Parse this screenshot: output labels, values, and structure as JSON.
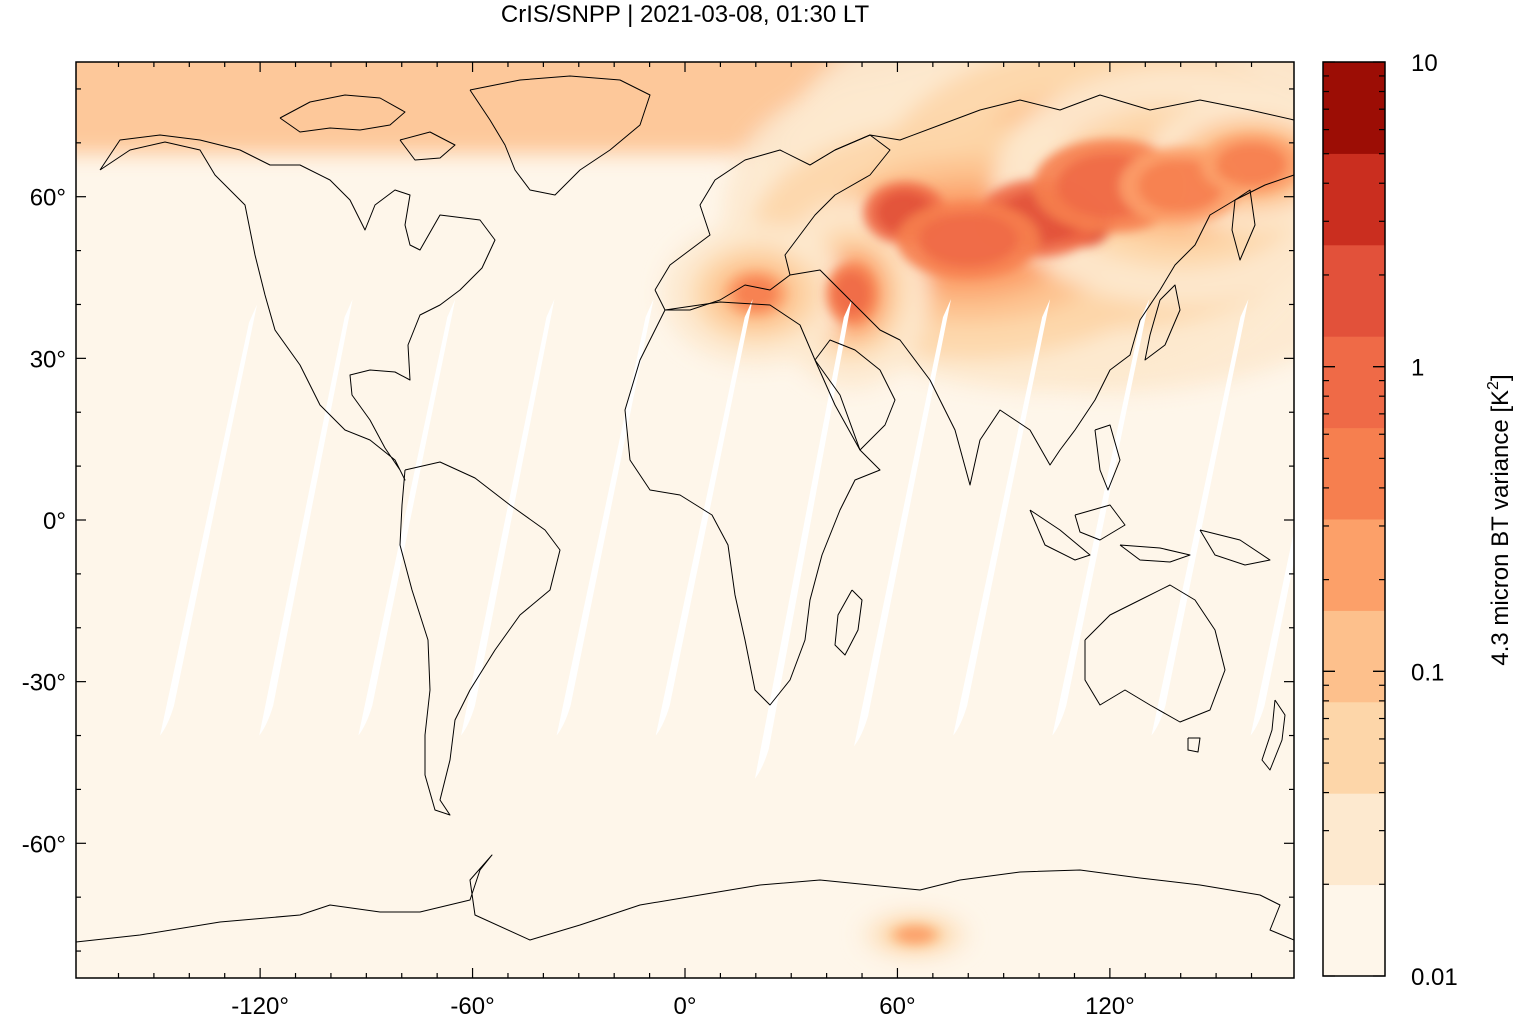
{
  "title": "CrIS/SNPP | 2021-03-08, 01:30 LT",
  "map": {
    "projection": "equirectangular",
    "lon_range": [
      -172,
      172
    ],
    "lat_range": [
      -85,
      85
    ],
    "x_ticks": [
      {
        "value": -120,
        "label": "-120°"
      },
      {
        "value": -60,
        "label": "-60°"
      },
      {
        "value": 0,
        "label": "0°"
      },
      {
        "value": 60,
        "label": "60°"
      },
      {
        "value": 120,
        "label": "120°"
      }
    ],
    "y_ticks": [
      {
        "value": 60,
        "label": "60°"
      },
      {
        "value": 30,
        "label": "30°"
      },
      {
        "value": 0,
        "label": "0°"
      },
      {
        "value": -30,
        "label": "-30°"
      },
      {
        "value": -60,
        "label": "-60°"
      }
    ],
    "background_color": "#fef6ea",
    "coastline_color": "#000000"
  },
  "colorbar": {
    "label": "4.3 micron BT variance [K",
    "label_superscript": "2",
    "label_close": "]",
    "scale": "log",
    "range": [
      0.01,
      10
    ],
    "tick_labels": [
      {
        "value": 10,
        "label": "10"
      },
      {
        "value": 1,
        "label": "1"
      },
      {
        "value": 0.1,
        "label": "0.1"
      },
      {
        "value": 0.01,
        "label": "0.01"
      }
    ],
    "levels": [
      {
        "from": 0.01,
        "to": 0.02,
        "color": "#fef6ea"
      },
      {
        "from": 0.02,
        "to": 0.04,
        "color": "#fde9cf"
      },
      {
        "from": 0.04,
        "to": 0.08,
        "color": "#fdd6a9"
      },
      {
        "from": 0.08,
        "to": 0.16,
        "color": "#fdc08c"
      },
      {
        "from": 0.16,
        "to": 0.32,
        "color": "#fca069"
      },
      {
        "from": 0.32,
        "to": 0.63,
        "color": "#f67f4f"
      },
      {
        "from": 0.63,
        "to": 1.26,
        "color": "#ef6a47"
      },
      {
        "from": 1.26,
        "to": 2.5,
        "color": "#e2513a"
      },
      {
        "from": 2.5,
        "to": 5.0,
        "color": "#ca2e1f"
      },
      {
        "from": 5.0,
        "to": 10.0,
        "color": "#9c0d05"
      }
    ]
  },
  "swath_gaps": [
    {
      "lon_south": -146,
      "lat_south": -40,
      "lon_north": -122,
      "lat_north": 40
    },
    {
      "lon_south": -118,
      "lat_south": -40,
      "lon_north": -95,
      "lat_north": 41
    },
    {
      "lon_south": -90,
      "lat_south": -40,
      "lon_north": -66,
      "lat_north": 41
    },
    {
      "lon_south": -61,
      "lat_south": -40,
      "lon_north": -38,
      "lat_north": 41
    },
    {
      "lon_south": -34,
      "lat_south": -40,
      "lon_north": -10,
      "lat_north": 41
    },
    {
      "lon_south": -6,
      "lat_south": -40,
      "lon_north": 18,
      "lat_north": 41
    },
    {
      "lon_south": 22,
      "lat_south": -48,
      "lon_north": 46,
      "lat_north": 41
    },
    {
      "lon_south": 50,
      "lat_south": -42,
      "lon_north": 74,
      "lat_north": 41
    },
    {
      "lon_south": 78,
      "lat_south": -40,
      "lon_north": 102,
      "lat_north": 41
    },
    {
      "lon_south": 106,
      "lat_south": -40,
      "lon_north": 130,
      "lat_north": 41
    },
    {
      "lon_south": 134,
      "lat_south": -40,
      "lon_north": 158,
      "lat_north": 41
    },
    {
      "lon_south": 162,
      "lat_south": -40,
      "lon_north": 186,
      "lat_north": 41
    }
  ],
  "hotspots": [
    {
      "lon": 90,
      "lat": 55,
      "value": 6.0,
      "spread_lon": 5,
      "spread_lat": 3
    },
    {
      "lon": 112,
      "lat": 55,
      "value": 3.5,
      "spread_lon": 6,
      "spread_lat": 3
    },
    {
      "lon": 62,
      "lat": 57,
      "value": 2.0,
      "spread_lon": 8,
      "spread_lat": 4
    },
    {
      "lon": 100,
      "lat": 56,
      "value": 2.0,
      "spread_lon": 12,
      "spread_lat": 5
    },
    {
      "lon": 120,
      "lat": 62,
      "value": 1.2,
      "spread_lon": 15,
      "spread_lat": 6
    },
    {
      "lon": 80,
      "lat": 52,
      "value": 1.0,
      "spread_lon": 14,
      "spread_lat": 5
    },
    {
      "lon": 47,
      "lat": 42,
      "value": 0.8,
      "spread_lon": 5,
      "spread_lat": 4
    },
    {
      "lon": 20,
      "lat": 42,
      "value": 0.6,
      "spread_lon": 6,
      "spread_lat": 3
    },
    {
      "lon": 140,
      "lat": 62,
      "value": 0.5,
      "spread_lon": 12,
      "spread_lat": 5
    },
    {
      "lon": 160,
      "lat": 66,
      "value": 0.4,
      "spread_lon": 10,
      "spread_lat": 4
    },
    {
      "lon": 65,
      "lat": -77,
      "value": 0.3,
      "spread_lon": 5,
      "spread_lat": 1.5
    }
  ],
  "arctic_band": {
    "lat_from": 68,
    "lat_to": 85,
    "value": 0.1
  }
}
